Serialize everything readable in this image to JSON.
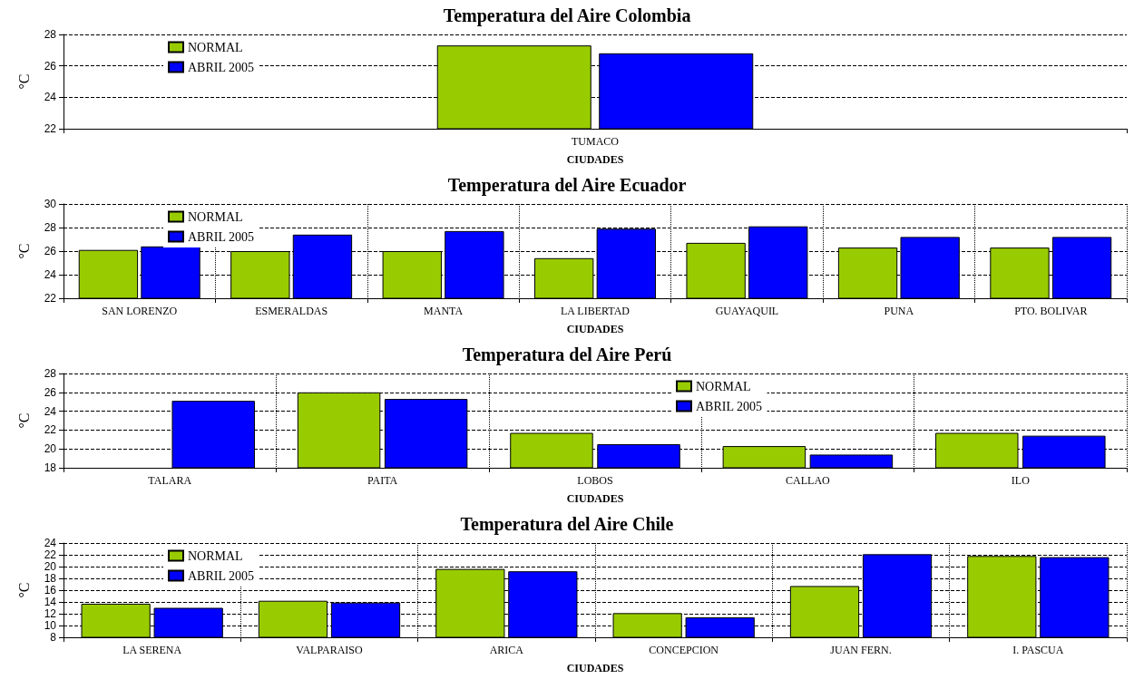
{
  "chart_data": [
    {
      "type": "bar",
      "title": "Temperatura del Aire Colombia",
      "xlabel": "CIUDADES",
      "ylabel": "°C",
      "categories": [
        "TUMACO"
      ],
      "series": [
        {
          "name": "NORMAL",
          "color": "#99cc00",
          "values": [
            27.3
          ]
        },
        {
          "name": "ABRIL 2005",
          "color": "#0000ff",
          "values": [
            26.8
          ]
        }
      ],
      "ylim": [
        22,
        28
      ],
      "yticks": [
        22,
        24,
        26,
        28
      ],
      "grid": "y",
      "legend": "top left"
    },
    {
      "type": "bar",
      "title": "Temperatura del Aire Ecuador",
      "xlabel": "CIUDADES",
      "ylabel": "°C",
      "categories": [
        "SAN LORENZO",
        "ESMERALDAS",
        "MANTA",
        "LA LIBERTAD",
        "GUAYAQUIL",
        "PUNA",
        "PTO. BOLIVAR"
      ],
      "series": [
        {
          "name": "NORMAL",
          "color": "#99cc00",
          "values": [
            26.1,
            26.0,
            26.0,
            25.4,
            26.7,
            26.3,
            26.3
          ]
        },
        {
          "name": "ABRIL 2005",
          "color": "#0000ff",
          "values": [
            26.4,
            27.4,
            27.7,
            27.9,
            28.1,
            27.2,
            27.2
          ]
        }
      ],
      "ylim": [
        22,
        30
      ],
      "yticks": [
        22,
        24,
        26,
        28,
        30
      ],
      "grid": true,
      "legend": "top left"
    },
    {
      "type": "bar",
      "title": "Temperatura del Aire Perú",
      "xlabel": "CIUDADES",
      "ylabel": "°C",
      "categories": [
        "TALARA",
        "PAITA",
        "LOBOS",
        "CALLAO",
        "ILO"
      ],
      "series": [
        {
          "name": "NORMAL",
          "color": "#99cc00",
          "values": [
            null,
            26.0,
            21.7,
            20.3,
            21.7
          ]
        },
        {
          "name": "ABRIL 2005",
          "color": "#0000ff",
          "values": [
            25.1,
            25.3,
            20.5,
            19.4,
            21.4
          ]
        }
      ],
      "ylim": [
        18,
        28
      ],
      "yticks": [
        18,
        20,
        22,
        24,
        26,
        28
      ],
      "grid": true,
      "legend": "top right"
    },
    {
      "type": "bar",
      "title": "Temperatura del Aire Chile",
      "xlabel": "CIUDADES",
      "ylabel": "°C",
      "categories": [
        "LA SERENA",
        "VALPARAISO",
        "ARICA",
        "CONCEPCION",
        "JUAN FERN.",
        "I. PASCUA"
      ],
      "series": [
        {
          "name": "NORMAL",
          "color": "#99cc00",
          "values": [
            13.7,
            14.2,
            19.6,
            12.1,
            16.7,
            21.8
          ]
        },
        {
          "name": "ABRIL 2005",
          "color": "#0000ff",
          "values": [
            13.0,
            13.9,
            19.2,
            11.4,
            22.1,
            21.6
          ]
        }
      ],
      "ylim": [
        8,
        24
      ],
      "yticks": [
        8,
        10,
        12,
        14,
        16,
        18,
        20,
        22,
        24
      ],
      "grid": true,
      "legend": "top left"
    }
  ]
}
